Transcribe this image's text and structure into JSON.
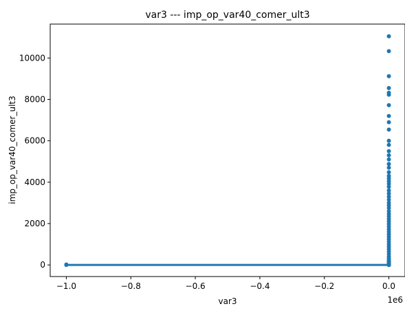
{
  "chart_data": {
    "type": "scatter",
    "title": "var3 --- imp_op_var40_comer_ult3",
    "xlabel": "var3",
    "ylabel": "imp_op_var40_comer_ult3",
    "x_offset_label": "1e6",
    "xlim": [
      -1050000,
      50000
    ],
    "ylim": [
      -560,
      11640
    ],
    "xticks": [
      -1.0,
      -0.8,
      -0.6,
      -0.4,
      -0.2,
      0.0
    ],
    "xtick_labels": [
      "−1.0",
      "−0.8",
      "−0.6",
      "−0.4",
      "−0.2",
      "0.0"
    ],
    "yticks": [
      0,
      2000,
      4000,
      6000,
      8000,
      10000
    ],
    "ytick_labels": [
      "0",
      "2000",
      "4000",
      "6000",
      "8000",
      "10000"
    ],
    "grid": false,
    "marker_color": "#1f77b4",
    "points": [
      [
        -999999,
        0
      ],
      [
        -999999,
        20
      ],
      [
        2,
        11050
      ],
      [
        2,
        10330
      ],
      [
        2,
        9120
      ],
      [
        2,
        8550
      ],
      [
        2,
        8320
      ],
      [
        2,
        8230
      ],
      [
        2,
        7720
      ],
      [
        2,
        7200
      ],
      [
        2,
        6900
      ],
      [
        2,
        6540
      ],
      [
        2,
        6000
      ],
      [
        2,
        5800
      ],
      [
        2,
        5500
      ],
      [
        2,
        5300
      ],
      [
        2,
        5100
      ],
      [
        2,
        4880
      ],
      [
        2,
        4700
      ],
      [
        2,
        4480
      ],
      [
        2,
        4300
      ],
      [
        2,
        4180
      ],
      [
        2,
        4050
      ],
      [
        2,
        3920
      ],
      [
        2,
        3780
      ],
      [
        2,
        3600
      ],
      [
        2,
        3450
      ],
      [
        2,
        3300
      ],
      [
        2,
        3150
      ],
      [
        2,
        3000
      ],
      [
        2,
        2880
      ],
      [
        2,
        2750
      ],
      [
        2,
        2600
      ],
      [
        2,
        2470
      ],
      [
        2,
        2350
      ],
      [
        2,
        2220
      ],
      [
        2,
        2100
      ],
      [
        2,
        1980
      ],
      [
        2,
        1850
      ],
      [
        2,
        1720
      ],
      [
        2,
        1600
      ],
      [
        2,
        1480
      ],
      [
        2,
        1360
      ],
      [
        2,
        1240
      ],
      [
        2,
        1120
      ],
      [
        2,
        1000
      ],
      [
        2,
        880
      ],
      [
        2,
        760
      ],
      [
        2,
        640
      ],
      [
        2,
        520
      ],
      [
        2,
        400
      ],
      [
        2,
        300
      ],
      [
        2,
        200
      ],
      [
        2,
        120
      ],
      [
        2,
        60
      ],
      [
        2,
        0
      ],
      [
        5,
        0
      ],
      [
        8,
        30
      ],
      [
        10,
        90
      ],
      [
        12,
        0
      ],
      [
        15,
        150
      ],
      [
        18,
        45
      ],
      [
        20,
        0
      ],
      [
        25,
        210
      ],
      [
        30,
        75
      ],
      [
        40,
        10
      ]
    ],
    "baseline_segment": {
      "x": [
        -999999,
        40
      ],
      "y": [
        0,
        30
      ]
    }
  }
}
